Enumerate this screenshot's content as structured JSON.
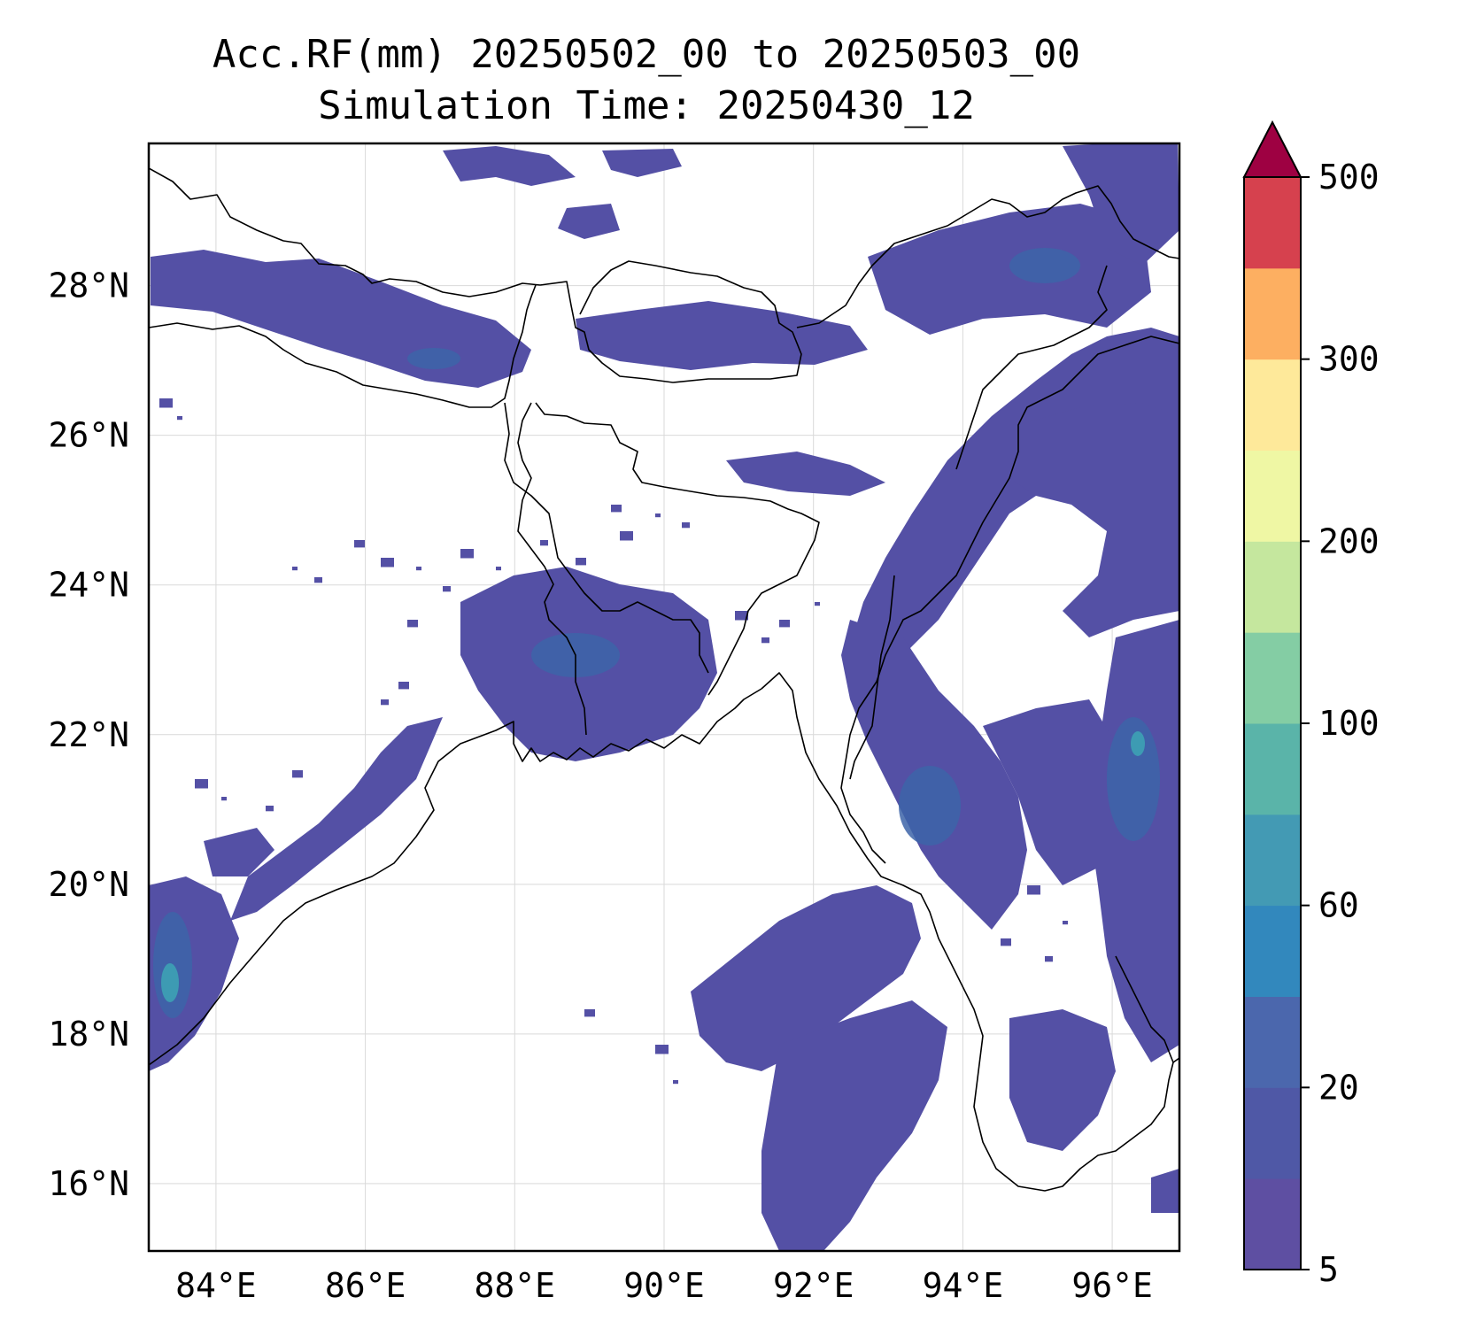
{
  "title": {
    "line1": "Acc.RF(mm) 20250502_00 to 20250503_00",
    "line2": "Simulation Time: 20250430_12"
  },
  "map": {
    "lon_range": [
      83.1,
      96.9
    ],
    "lat_range": [
      15.1,
      29.9
    ],
    "lon_ticks": [
      84,
      86,
      88,
      90,
      92,
      94,
      96
    ],
    "lat_ticks": [
      16,
      18,
      20,
      22,
      24,
      26,
      28
    ],
    "lon_tick_labels": [
      "84°E",
      "86°E",
      "88°E",
      "90°E",
      "92°E",
      "94°E",
      "96°E"
    ],
    "lat_tick_labels": [
      "16°N",
      "18°N",
      "20°N",
      "22°N",
      "24°N",
      "26°N",
      "28°N"
    ],
    "gridlines": true,
    "rain_fill_color": "#5450a5",
    "rain_core_color": "#3d64a8",
    "heavy_rain_color": "#3d9bb3"
  },
  "colorbar": {
    "colors": [
      "#5e4fa2",
      "#4f58a6",
      "#4b67ad",
      "#3288bd",
      "#439ab4",
      "#5ab4a9",
      "#84cda4",
      "#c5e79e",
      "#eff7a4",
      "#fee99a",
      "#fdaf61",
      "#d6414e"
    ],
    "extend_color": "#9e0142",
    "ticks": [
      5,
      20,
      60,
      100,
      200,
      300,
      500
    ],
    "tick_labels": [
      "5",
      "20",
      "60",
      "100",
      "200",
      "300",
      "500"
    ]
  }
}
